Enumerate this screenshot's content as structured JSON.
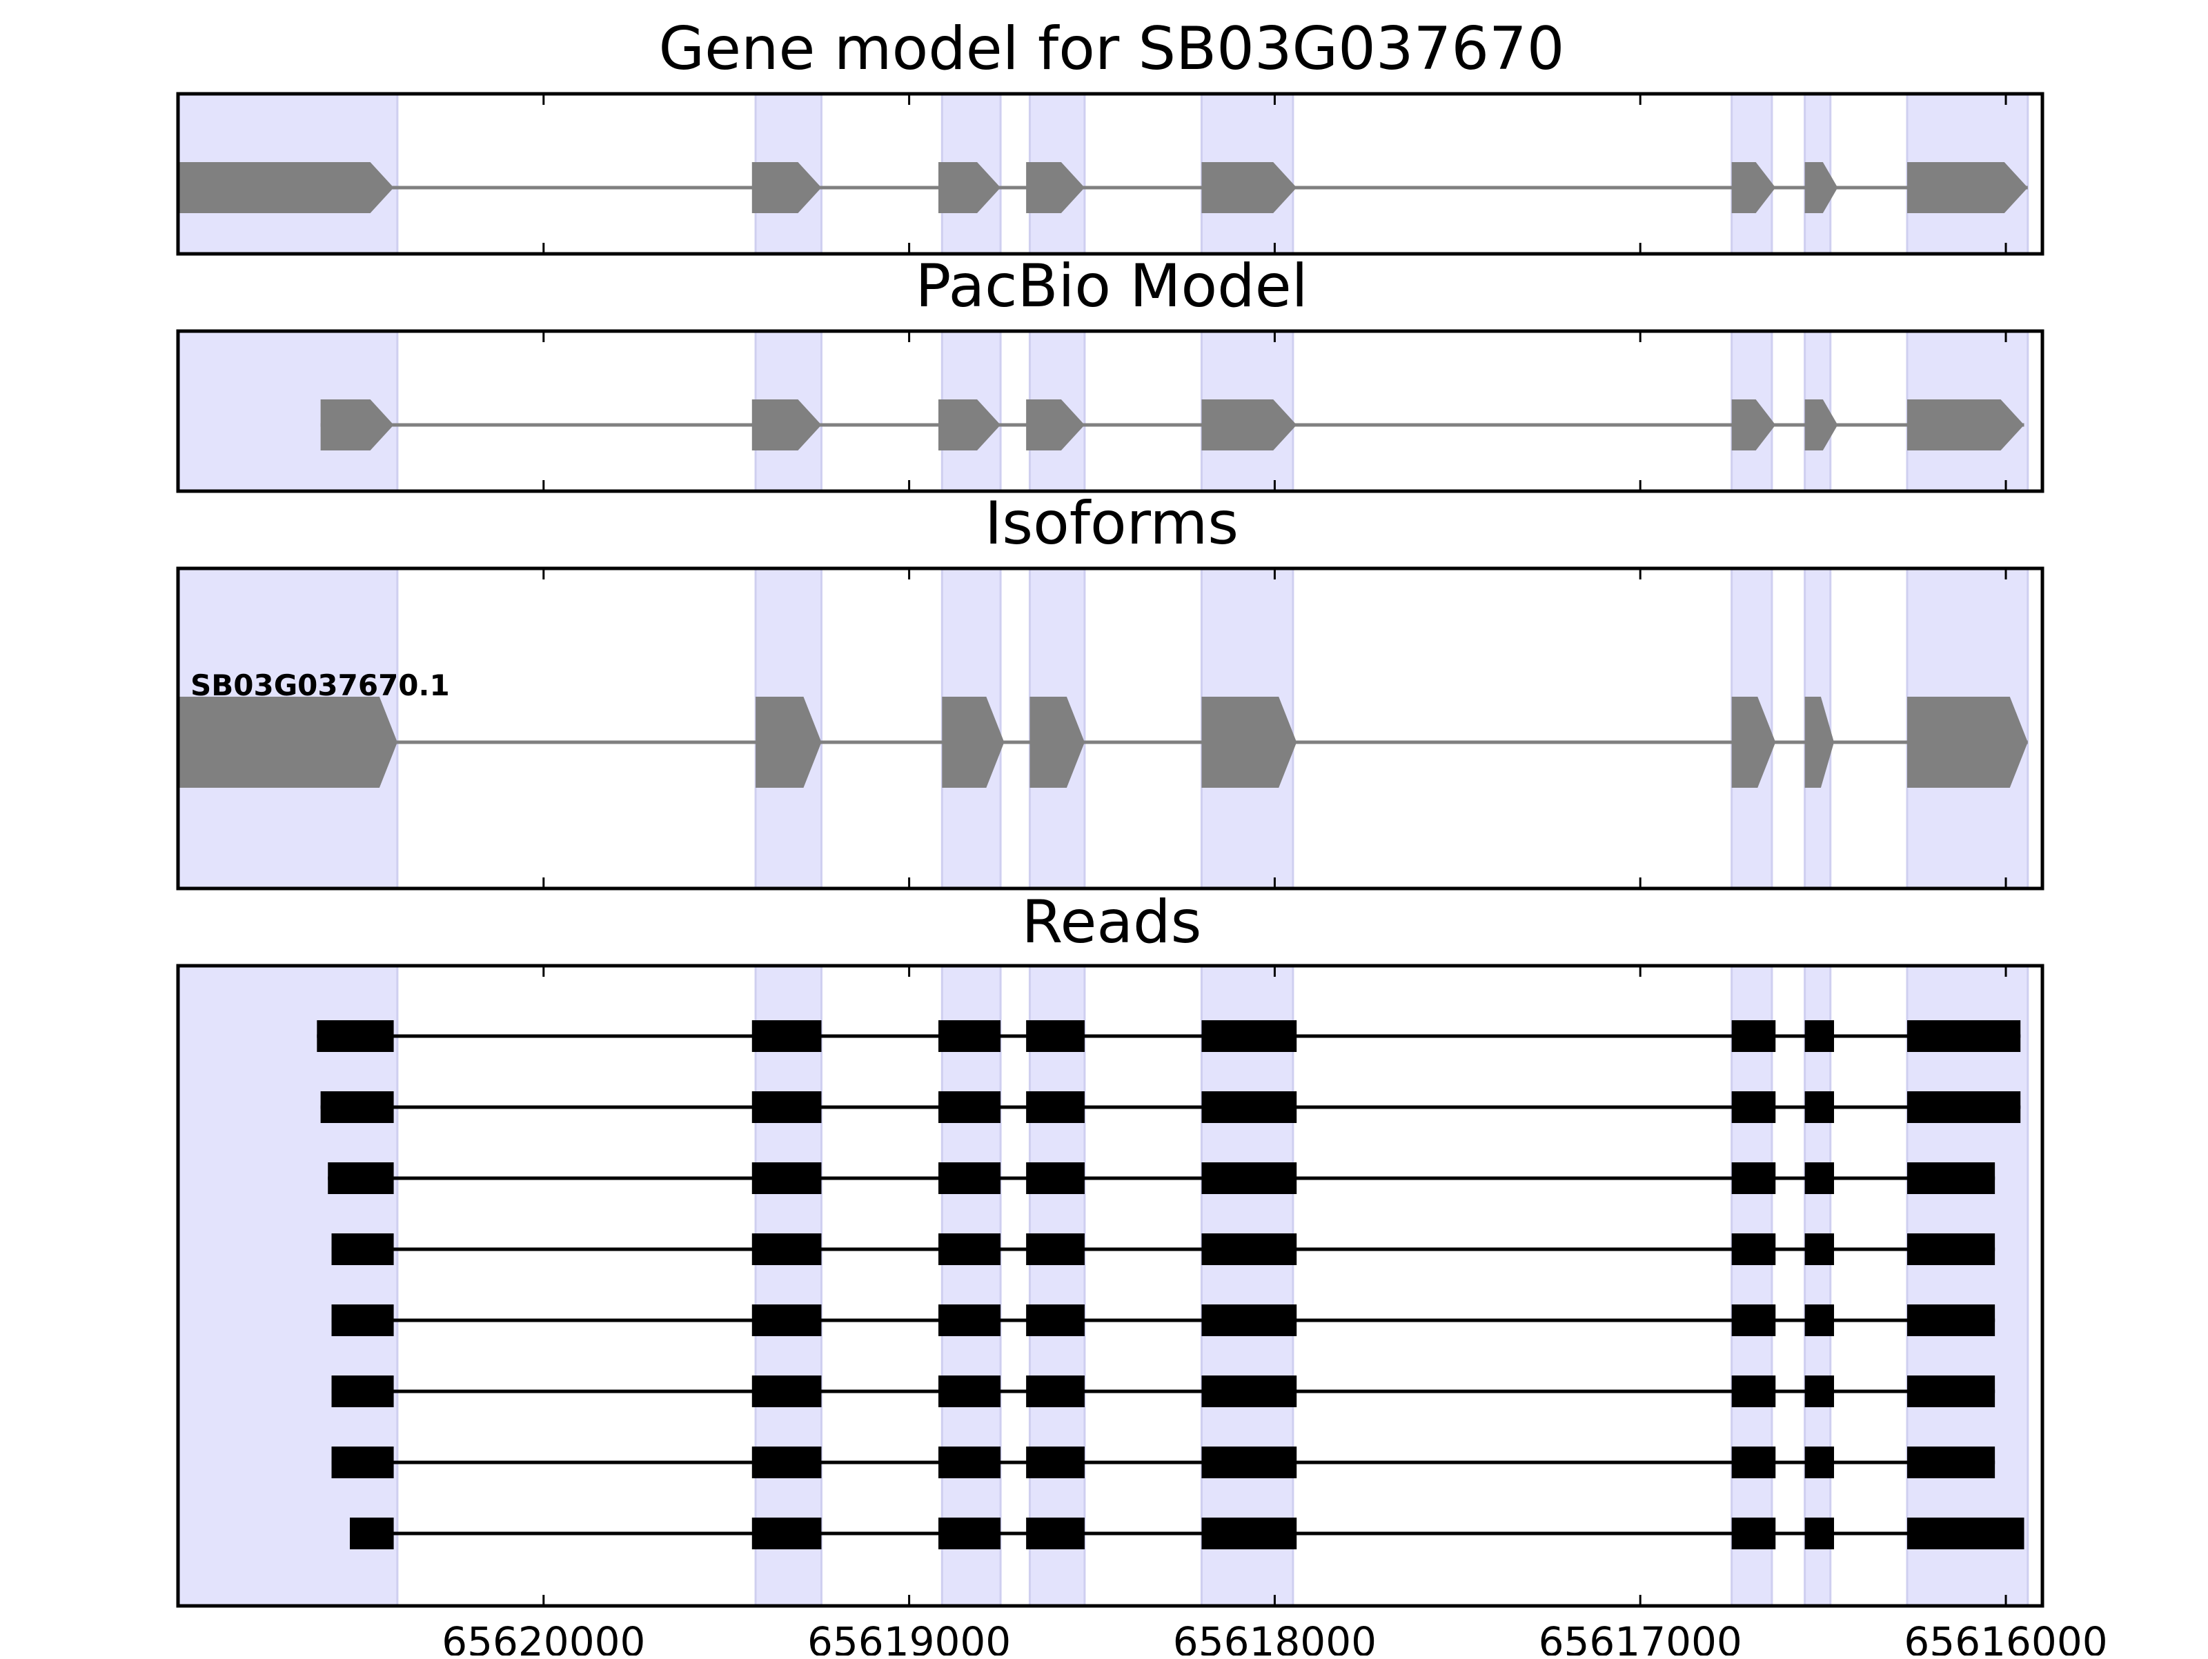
{
  "chart_data": {
    "type": "gene-track",
    "x_axis": {
      "reversed": true,
      "range": [
        65621000,
        65615900
      ],
      "tick_values": [
        65620000,
        65619000,
        65618000,
        65617000,
        65616000
      ],
      "tick_labels": [
        "65620000",
        "65619000",
        "65618000",
        "65617000",
        "65616000"
      ]
    },
    "exon_regions": [
      [
        65621000,
        65620400
      ],
      [
        65619420,
        65619240
      ],
      [
        65618910,
        65618750
      ],
      [
        65618670,
        65618520
      ],
      [
        65618200,
        65617950
      ],
      [
        65616750,
        65616640
      ],
      [
        65616550,
        65616480
      ],
      [
        65616270,
        65615940
      ]
    ],
    "colors": {
      "exon_shading": "#e3e3fc",
      "exon_shading_edge": "#cfcff0",
      "gene_feature": "#808080",
      "read_feature": "#000000",
      "frame": "#000000"
    },
    "panels": [
      {
        "id": "gene-model",
        "title": "Gene model for SB03G037670",
        "kind": "arrows",
        "rows": [
          {
            "label": "",
            "exons": [
              [
                65621000,
                65620410
              ],
              [
                65619430,
                65619240
              ],
              [
                65618920,
                65618750
              ],
              [
                65618680,
                65618520
              ],
              [
                65618200,
                65617940
              ],
              [
                65616750,
                65616630
              ],
              [
                65616550,
                65616460
              ],
              [
                65616270,
                65615940
              ]
            ]
          }
        ]
      },
      {
        "id": "pacbio-model",
        "title": "PacBio Model",
        "kind": "arrows",
        "rows": [
          {
            "label": "",
            "exons": [
              [
                65620610,
                65620410
              ],
              [
                65619430,
                65619240
              ],
              [
                65618920,
                65618750
              ],
              [
                65618680,
                65618520
              ],
              [
                65618200,
                65617940
              ],
              [
                65616750,
                65616630
              ],
              [
                65616550,
                65616460
              ],
              [
                65616270,
                65615950
              ]
            ]
          }
        ]
      },
      {
        "id": "isoforms",
        "title": "Isoforms",
        "kind": "arrows",
        "rows": [
          {
            "label": "SB03G037670.1",
            "exons": [
              [
                65621000,
                65620400
              ],
              [
                65619420,
                65619240
              ],
              [
                65618910,
                65618740
              ],
              [
                65618670,
                65618520
              ],
              [
                65618200,
                65617940
              ],
              [
                65616750,
                65616630
              ],
              [
                65616550,
                65616470
              ],
              [
                65616270,
                65615940
              ]
            ]
          }
        ]
      },
      {
        "id": "reads",
        "title": "Reads",
        "kind": "bars",
        "rows": [
          {
            "label": "",
            "exons": [
              [
                65620620,
                65620410
              ],
              [
                65619430,
                65619240
              ],
              [
                65618920,
                65618750
              ],
              [
                65618680,
                65618520
              ],
              [
                65618200,
                65617940
              ],
              [
                65616750,
                65616630
              ],
              [
                65616550,
                65616470
              ],
              [
                65616270,
                65615960
              ]
            ]
          },
          {
            "label": "",
            "exons": [
              [
                65620610,
                65620410
              ],
              [
                65619430,
                65619240
              ],
              [
                65618920,
                65618750
              ],
              [
                65618680,
                65618520
              ],
              [
                65618200,
                65617940
              ],
              [
                65616750,
                65616630
              ],
              [
                65616550,
                65616470
              ],
              [
                65616270,
                65615960
              ]
            ]
          },
          {
            "label": "",
            "exons": [
              [
                65620590,
                65620410
              ],
              [
                65619430,
                65619240
              ],
              [
                65618920,
                65618750
              ],
              [
                65618680,
                65618520
              ],
              [
                65618200,
                65617940
              ],
              [
                65616750,
                65616630
              ],
              [
                65616550,
                65616470
              ],
              [
                65616270,
                65616030
              ]
            ]
          },
          {
            "label": "",
            "exons": [
              [
                65620580,
                65620410
              ],
              [
                65619430,
                65619240
              ],
              [
                65618920,
                65618750
              ],
              [
                65618680,
                65618520
              ],
              [
                65618200,
                65617940
              ],
              [
                65616750,
                65616630
              ],
              [
                65616550,
                65616470
              ],
              [
                65616270,
                65616030
              ]
            ]
          },
          {
            "label": "",
            "exons": [
              [
                65620580,
                65620410
              ],
              [
                65619430,
                65619240
              ],
              [
                65618920,
                65618750
              ],
              [
                65618680,
                65618520
              ],
              [
                65618200,
                65617940
              ],
              [
                65616750,
                65616630
              ],
              [
                65616550,
                65616470
              ],
              [
                65616270,
                65616030
              ]
            ]
          },
          {
            "label": "",
            "exons": [
              [
                65620580,
                65620410
              ],
              [
                65619430,
                65619240
              ],
              [
                65618920,
                65618750
              ],
              [
                65618680,
                65618520
              ],
              [
                65618200,
                65617940
              ],
              [
                65616750,
                65616630
              ],
              [
                65616550,
                65616470
              ],
              [
                65616270,
                65616030
              ]
            ]
          },
          {
            "label": "",
            "exons": [
              [
                65620580,
                65620410
              ],
              [
                65619430,
                65619240
              ],
              [
                65618920,
                65618750
              ],
              [
                65618680,
                65618520
              ],
              [
                65618200,
                65617940
              ],
              [
                65616750,
                65616630
              ],
              [
                65616550,
                65616470
              ],
              [
                65616270,
                65616030
              ]
            ]
          },
          {
            "label": "",
            "exons": [
              [
                65620530,
                65620410
              ],
              [
                65619430,
                65619240
              ],
              [
                65618920,
                65618750
              ],
              [
                65618680,
                65618520
              ],
              [
                65618200,
                65617940
              ],
              [
                65616750,
                65616630
              ],
              [
                65616550,
                65616470
              ],
              [
                65616270,
                65615950
              ]
            ]
          }
        ]
      }
    ]
  }
}
